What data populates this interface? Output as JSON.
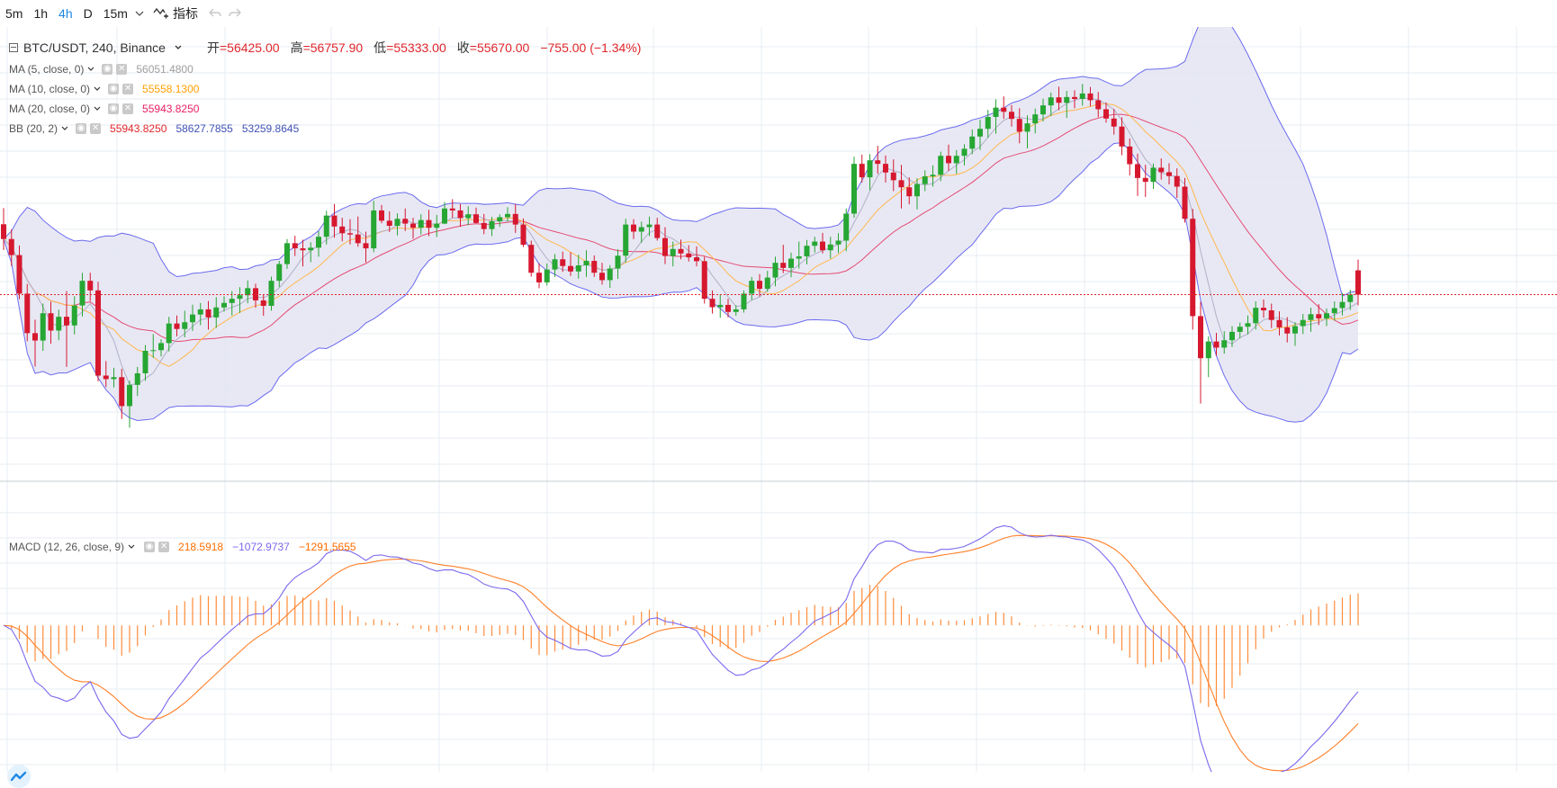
{
  "toolbar": {
    "intervals": [
      "5m",
      "1h",
      "4h",
      "D",
      "15m"
    ],
    "active_interval": "4h",
    "indicators_label": "指标"
  },
  "symbol": {
    "title": "BTC/USDT, 240, Binance",
    "open_label": "开",
    "open": "56425.00",
    "high_label": "高",
    "high": "56757.90",
    "low_label": "低",
    "low": "55333.00",
    "close_label": "收",
    "close": "55670.00",
    "change": "−755.00 (−1.34%)"
  },
  "indicators": [
    {
      "name": "MA (5, close, 0)",
      "values": [
        "56051.4800"
      ],
      "colors": [
        "#9e9e9e"
      ]
    },
    {
      "name": "MA (10, close, 0)",
      "values": [
        "55558.1300"
      ],
      "colors": [
        "#ffa000"
      ]
    },
    {
      "name": "MA (20, close, 0)",
      "values": [
        "55943.8250"
      ],
      "colors": [
        "#e91e63"
      ]
    },
    {
      "name": "BB (20, 2)",
      "values": [
        "55943.8250",
        "58627.7855",
        "53259.8645"
      ],
      "colors": [
        "#e0262b",
        "#3f51b5",
        "#3f51b5"
      ]
    }
  ],
  "macd": {
    "name": "MACD (12, 26, close, 9)",
    "values": [
      "218.5918",
      "−1072.9737",
      "−1291.5655"
    ],
    "colors": [
      "#ff6d00",
      "#7b68ee",
      "#ff6d00"
    ]
  },
  "colors": {
    "up": "#26a633",
    "down": "#d6182f",
    "bb_line": "#6b6bf0",
    "bb_fill": "#e4e4f2",
    "ma5": "#b0b0c8",
    "ma10": "#ffb74d",
    "ma20": "#e54a73",
    "macd_line": "#7b68ee",
    "signal_line": "#ff7f27",
    "hist": "#ff8c3a",
    "grid": "#e7eef3",
    "last_price": "#e0262b"
  },
  "chart_data": {
    "type": "candlestick",
    "symbol": "BTC/USDT",
    "interval": "240",
    "exchange": "Binance",
    "candles": [
      [
        57860,
        58360,
        57060,
        57400
      ],
      [
        57400,
        57700,
        56560,
        56900
      ],
      [
        56900,
        57200,
        55530,
        55700
      ],
      [
        55700,
        56000,
        54220,
        54470
      ],
      [
        54470,
        54890,
        53430,
        54240
      ],
      [
        54240,
        55390,
        53920,
        55090
      ],
      [
        55090,
        55450,
        54140,
        54550
      ],
      [
        54550,
        55200,
        54250,
        54980
      ],
      [
        54980,
        55780,
        53420,
        54710
      ],
      [
        54710,
        55620,
        54430,
        55330
      ],
      [
        55330,
        56350,
        54990,
        56100
      ],
      [
        56100,
        56350,
        55470,
        55800
      ],
      [
        55800,
        56070,
        52970,
        53150
      ],
      [
        53150,
        53600,
        52790,
        53040
      ],
      [
        53040,
        53390,
        52780,
        53100
      ],
      [
        53100,
        53360,
        51800,
        52200
      ],
      [
        52200,
        52990,
        51530,
        52860
      ],
      [
        52860,
        53420,
        52510,
        53220
      ],
      [
        53220,
        54100,
        52990,
        53920
      ],
      [
        53920,
        54440,
        53700,
        53940
      ],
      [
        53940,
        54280,
        53750,
        54160
      ],
      [
        54160,
        54980,
        53900,
        54770
      ],
      [
        54770,
        55020,
        54370,
        54600
      ],
      [
        54600,
        55170,
        54340,
        54810
      ],
      [
        54810,
        55360,
        54540,
        55050
      ],
      [
        55050,
        55410,
        54720,
        55210
      ],
      [
        55210,
        55470,
        54580,
        54960
      ],
      [
        54960,
        55590,
        54630,
        55270
      ],
      [
        55270,
        55620,
        55140,
        55410
      ],
      [
        55410,
        55780,
        55020,
        55540
      ],
      [
        55540,
        55900,
        55100,
        55650
      ],
      [
        55650,
        56110,
        55400,
        55870
      ],
      [
        55870,
        56010,
        55260,
        55490
      ],
      [
        55490,
        55660,
        55010,
        55320
      ],
      [
        55320,
        56230,
        55170,
        56100
      ],
      [
        56100,
        56720,
        55900,
        56620
      ],
      [
        56620,
        57400,
        56470,
        57270
      ],
      [
        57270,
        57500,
        56870,
        57110
      ],
      [
        57110,
        57380,
        56550,
        57050
      ],
      [
        57050,
        57300,
        56680,
        57130
      ],
      [
        57130,
        57640,
        56850,
        57470
      ],
      [
        57470,
        58280,
        57230,
        58130
      ],
      [
        58130,
        58490,
        57440,
        57790
      ],
      [
        57790,
        58060,
        57330,
        57580
      ],
      [
        57580,
        58020,
        57230,
        57540
      ],
      [
        57540,
        58100,
        57160,
        57270
      ],
      [
        57270,
        57630,
        56670,
        57110
      ],
      [
        57110,
        58590,
        56990,
        58290
      ],
      [
        58290,
        58460,
        57890,
        57970
      ],
      [
        57970,
        58260,
        57620,
        57810
      ],
      [
        57810,
        58200,
        57510,
        58030
      ],
      [
        58030,
        58350,
        57650,
        57880
      ],
      [
        57880,
        58060,
        57410,
        57750
      ],
      [
        57750,
        58170,
        57540,
        57990
      ],
      [
        57990,
        58310,
        57490,
        57750
      ],
      [
        57750,
        58150,
        57460,
        57880
      ],
      [
        57880,
        58550,
        57860,
        58350
      ],
      [
        58350,
        58640,
        58060,
        58290
      ],
      [
        58290,
        58490,
        57780,
        58050
      ],
      [
        58050,
        58420,
        57830,
        58170
      ],
      [
        58170,
        58380,
        57890,
        57900
      ],
      [
        57900,
        58180,
        57550,
        57710
      ],
      [
        57710,
        58090,
        57490,
        57950
      ],
      [
        57950,
        58170,
        57780,
        58080
      ],
      [
        58080,
        58390,
        57950,
        58180
      ],
      [
        58180,
        58490,
        57590,
        57850
      ],
      [
        57850,
        58040,
        57150,
        57220
      ],
      [
        57220,
        57350,
        56230,
        56350
      ],
      [
        56350,
        56650,
        55870,
        56050
      ],
      [
        56050,
        56640,
        55950,
        56450
      ],
      [
        56450,
        56930,
        56220,
        56770
      ],
      [
        56770,
        57010,
        56380,
        56560
      ],
      [
        56560,
        56990,
        56250,
        56390
      ],
      [
        56390,
        56910,
        56170,
        56580
      ],
      [
        56580,
        57050,
        56220,
        56720
      ],
      [
        56720,
        56890,
        56220,
        56350
      ],
      [
        56350,
        56660,
        55980,
        56120
      ],
      [
        56120,
        56590,
        55880,
        56480
      ],
      [
        56480,
        57080,
        56160,
        56880
      ],
      [
        56880,
        58030,
        56670,
        57850
      ],
      [
        57850,
        58020,
        57400,
        57630
      ],
      [
        57630,
        57940,
        57280,
        57770
      ],
      [
        57770,
        58100,
        57490,
        57850
      ],
      [
        57850,
        58060,
        57350,
        57430
      ],
      [
        57430,
        57770,
        56620,
        56870
      ],
      [
        56870,
        57320,
        56550,
        57090
      ],
      [
        57090,
        57380,
        56770,
        56950
      ],
      [
        56950,
        57210,
        56700,
        56830
      ],
      [
        56830,
        57170,
        56550,
        56710
      ],
      [
        56710,
        56850,
        55390,
        55540
      ],
      [
        55540,
        55800,
        55080,
        55280
      ],
      [
        55280,
        55680,
        54950,
        55350
      ],
      [
        55350,
        55540,
        54960,
        55130
      ],
      [
        55130,
        55340,
        55010,
        55210
      ],
      [
        55210,
        55800,
        55110,
        55700
      ],
      [
        55700,
        56220,
        55500,
        56100
      ],
      [
        56100,
        56310,
        55610,
        55850
      ],
      [
        55850,
        56410,
        55760,
        56200
      ],
      [
        56200,
        56850,
        55930,
        56660
      ],
      [
        56660,
        57220,
        56340,
        56500
      ],
      [
        56500,
        56980,
        56210,
        56790
      ],
      [
        56790,
        57320,
        56480,
        56860
      ],
      [
        56860,
        57370,
        56610,
        57190
      ],
      [
        57190,
        57470,
        56980,
        57320
      ],
      [
        57320,
        57590,
        56950,
        57050
      ],
      [
        57050,
        57470,
        56790,
        57230
      ],
      [
        57230,
        57580,
        56960,
        57350
      ],
      [
        57350,
        58350,
        57020,
        58190
      ],
      [
        58190,
        59960,
        58060,
        59740
      ],
      [
        59740,
        60030,
        59160,
        59320
      ],
      [
        59320,
        60040,
        58920,
        59850
      ],
      [
        59850,
        60300,
        59430,
        59740
      ],
      [
        59740,
        60000,
        59160,
        59470
      ],
      [
        59470,
        59880,
        58890,
        59230
      ],
      [
        59230,
        59710,
        58350,
        59010
      ],
      [
        59010,
        59320,
        58480,
        58730
      ],
      [
        58730,
        59290,
        58320,
        59110
      ],
      [
        59110,
        59540,
        58890,
        59350
      ],
      [
        59350,
        59690,
        59030,
        59400
      ],
      [
        59400,
        60120,
        59200,
        59990
      ],
      [
        59990,
        60340,
        59520,
        59760
      ],
      [
        59760,
        60170,
        59430,
        59990
      ],
      [
        59990,
        60350,
        59690,
        60210
      ],
      [
        60210,
        60810,
        60040,
        60590
      ],
      [
        60590,
        61110,
        60170,
        60830
      ],
      [
        60830,
        61420,
        60550,
        61200
      ],
      [
        61200,
        61750,
        60680,
        61490
      ],
      [
        61490,
        61840,
        61140,
        61360
      ],
      [
        61360,
        61570,
        60900,
        61140
      ],
      [
        61140,
        61470,
        60380,
        60740
      ],
      [
        60740,
        61250,
        60220,
        61000
      ],
      [
        61000,
        61460,
        60690,
        61280
      ],
      [
        61280,
        61770,
        61060,
        61560
      ],
      [
        61560,
        61960,
        61230,
        61810
      ],
      [
        61810,
        62140,
        61410,
        61640
      ],
      [
        61640,
        62010,
        61170,
        61820
      ],
      [
        61820,
        62030,
        61470,
        61760
      ],
      [
        61760,
        62230,
        61550,
        61930
      ],
      [
        61930,
        62130,
        61530,
        61720
      ],
      [
        61720,
        61980,
        61190,
        61440
      ],
      [
        61440,
        61650,
        61020,
        61150
      ],
      [
        61150,
        61450,
        60650,
        60900
      ],
      [
        60900,
        61190,
        60010,
        60280
      ],
      [
        60280,
        60530,
        59380,
        59730
      ],
      [
        59730,
        60060,
        58740,
        59300
      ],
      [
        59300,
        59710,
        58710,
        59180
      ],
      [
        59180,
        59750,
        58960,
        59620
      ],
      [
        59620,
        59910,
        59250,
        59480
      ],
      [
        59480,
        59760,
        59100,
        59360
      ],
      [
        59360,
        59600,
        58680,
        59030
      ],
      [
        59030,
        59300,
        57910,
        58030
      ],
      [
        58030,
        58340,
        54580,
        55000
      ],
      [
        55000,
        55450,
        52280,
        53690
      ],
      [
        53690,
        54370,
        53100,
        54210
      ],
      [
        54210,
        54480,
        53770,
        54020
      ],
      [
        54020,
        54530,
        53830,
        54250
      ],
      [
        54250,
        54690,
        54040,
        54510
      ],
      [
        54510,
        54800,
        54310,
        54670
      ],
      [
        54670,
        55020,
        54430,
        54780
      ],
      [
        54780,
        55460,
        54580,
        55260
      ],
      [
        55260,
        55520,
        54950,
        55180
      ],
      [
        55180,
        55390,
        54630,
        54880
      ],
      [
        54880,
        55150,
        54400,
        54650
      ],
      [
        54650,
        54970,
        54180,
        54460
      ],
      [
        54460,
        54810,
        54070,
        54690
      ],
      [
        54690,
        55070,
        54440,
        54880
      ],
      [
        54880,
        55260,
        54510,
        55060
      ],
      [
        55060,
        55370,
        54720,
        54930
      ],
      [
        54930,
        55240,
        54690,
        55090
      ],
      [
        55090,
        55460,
        54860,
        55250
      ],
      [
        55250,
        55720,
        55020,
        55440
      ],
      [
        55440,
        55820,
        55190,
        55670
      ],
      [
        56425,
        56757.9,
        55333,
        55670
      ]
    ],
    "macd_range": [
      -1300,
      1150
    ],
    "histogram_note": "MACD histogram shown as orange bars around zero line",
    "last_price": 55670.0
  }
}
